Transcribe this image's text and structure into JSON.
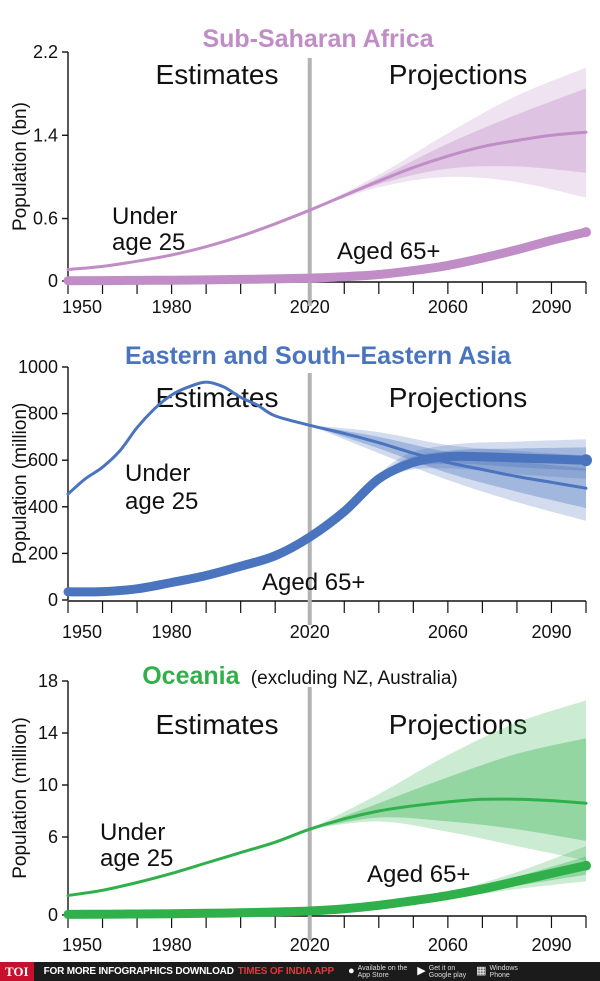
{
  "footer": {
    "logo": "TOI",
    "promo_text": "FOR MORE INFOGRAPHICS DOWNLOAD",
    "promo_brand": "TIMES OF INDIA APP",
    "stores": [
      {
        "icon": "apple-icon",
        "line1": "Available on the",
        "line2": "App Store"
      },
      {
        "icon": "google-play-icon",
        "line1": "Get it on",
        "line2": "Google play"
      },
      {
        "icon": "windows-icon",
        "line1": "Windows",
        "line2": "Phone"
      }
    ]
  },
  "colors": {
    "africa": "#c08dc6",
    "africa_band": "#c08dc6",
    "asia": "#4a74bd",
    "oceania": "#2fb04b",
    "divider": "#b3b3b3"
  },
  "chart_data": [
    {
      "type": "line",
      "title": "Sub-Saharan Africa",
      "subtitle": "",
      "ylabel": "Population (bn)",
      "xlabel": "",
      "xlim": [
        1950,
        2100
      ],
      "ylim": [
        0,
        2.2
      ],
      "xticks": [
        1950,
        1980,
        2020,
        2060,
        2090
      ],
      "yticks": [
        0,
        0.6,
        1.4,
        2.2
      ],
      "tick_labels_y": [
        "0",
        "0.6",
        "1.4",
        "2.2"
      ],
      "divider_year": 2020,
      "region_labels": {
        "left": "Estimates",
        "right": "Projections"
      },
      "series": [
        {
          "name": "Under age 25",
          "label_lines": [
            "Under",
            "age 25"
          ],
          "x": [
            1950,
            1960,
            1970,
            1980,
            1990,
            2000,
            2010,
            2020,
            2030,
            2040,
            2050,
            2060,
            2070,
            2080,
            2090,
            2100
          ],
          "y": [
            0.11,
            0.14,
            0.19,
            0.25,
            0.33,
            0.43,
            0.55,
            0.68,
            0.82,
            0.96,
            1.09,
            1.2,
            1.29,
            1.35,
            1.4,
            1.43
          ],
          "band_inner": [
            [
              2020,
              0.68,
              0.68
            ],
            [
              2040,
              0.93,
              0.99
            ],
            [
              2060,
              1.08,
              1.32
            ],
            [
              2080,
              1.1,
              1.6
            ],
            [
              2100,
              1.04,
              1.85
            ]
          ],
          "band_outer": [
            [
              2020,
              0.68,
              0.68
            ],
            [
              2040,
              0.9,
              1.02
            ],
            [
              2060,
              1.0,
              1.42
            ],
            [
              2080,
              0.95,
              1.78
            ],
            [
              2100,
              0.8,
              2.05
            ]
          ]
        },
        {
          "name": "Aged 65+",
          "label_lines": [
            "Aged 65+"
          ],
          "x": [
            1950,
            1960,
            1970,
            1980,
            1990,
            2000,
            2010,
            2020,
            2030,
            2040,
            2050,
            2060,
            2070,
            2080,
            2090,
            2100
          ],
          "y": [
            0.003,
            0.004,
            0.006,
            0.008,
            0.011,
            0.015,
            0.02,
            0.028,
            0.041,
            0.062,
            0.1,
            0.15,
            0.22,
            0.3,
            0.39,
            0.47
          ]
        }
      ]
    },
    {
      "type": "line",
      "title": "Eastern and South−Eastern Asia",
      "subtitle": "",
      "ylabel": "Population (million)",
      "xlabel": "",
      "xlim": [
        1950,
        2100
      ],
      "ylim": [
        0,
        1000
      ],
      "xticks": [
        1950,
        1980,
        2020,
        2060,
        2090
      ],
      "yticks": [
        0,
        200,
        400,
        600,
        800,
        1000
      ],
      "tick_labels_y": [
        "0",
        "200",
        "400",
        "600",
        "800",
        "1000"
      ],
      "divider_year": 2020,
      "region_labels": {
        "left": "Estimates",
        "right": "Projections"
      },
      "series": [
        {
          "name": "Under age 25",
          "label_lines": [
            "Under",
            "age 25"
          ],
          "x": [
            1950,
            1955,
            1960,
            1965,
            1970,
            1975,
            1980,
            1985,
            1990,
            1995,
            2000,
            2005,
            2010,
            2020,
            2030,
            2040,
            2050,
            2060,
            2070,
            2080,
            2090,
            2100
          ],
          "y": [
            455,
            520,
            570,
            640,
            740,
            820,
            880,
            915,
            935,
            915,
            870,
            835,
            790,
            750,
            715,
            675,
            630,
            590,
            560,
            530,
            505,
            480
          ],
          "band_inner": [
            [
              2020,
              750,
              750
            ],
            [
              2040,
              650,
              700
            ],
            [
              2060,
              545,
              635
            ],
            [
              2080,
              465,
              595
            ],
            [
              2100,
              395,
              565
            ]
          ],
          "band_outer": [
            [
              2020,
              750,
              750
            ],
            [
              2040,
              630,
              720
            ],
            [
              2060,
              515,
              665
            ],
            [
              2080,
              420,
              640
            ],
            [
              2100,
              340,
              620
            ]
          ]
        },
        {
          "name": "Aged 65+",
          "label_lines": [
            "Aged 65+"
          ],
          "x": [
            1950,
            1960,
            1970,
            1980,
            1990,
            2000,
            2010,
            2020,
            2030,
            2040,
            2050,
            2060,
            2070,
            2080,
            2090,
            2100
          ],
          "y": [
            35,
            36,
            48,
            75,
            105,
            145,
            190,
            270,
            380,
            520,
            590,
            615,
            615,
            610,
            605,
            600
          ],
          "band_inner": [
            [
              2030,
              380,
              380
            ],
            [
              2045,
              550,
              585
            ],
            [
              2060,
              585,
              640
            ],
            [
              2080,
              570,
              650
            ],
            [
              2100,
              555,
              655
            ]
          ],
          "band_outer": [
            [
              2030,
              380,
              380
            ],
            [
              2045,
              540,
              600
            ],
            [
              2060,
              565,
              665
            ],
            [
              2080,
              540,
              680
            ],
            [
              2100,
              520,
              690
            ]
          ]
        }
      ]
    },
    {
      "type": "line",
      "title": "Oceania",
      "subtitle": "(excluding NZ, Australia)",
      "ylabel": "Population (million)",
      "xlabel": "",
      "xlim": [
        1950,
        2100
      ],
      "ylim": [
        0,
        18
      ],
      "xticks": [
        1950,
        1980,
        2020,
        2060,
        2090
      ],
      "yticks": [
        0,
        6,
        10,
        14,
        18
      ],
      "tick_labels_y": [
        "0",
        "6",
        "10",
        "14",
        "18"
      ],
      "divider_year": 2020,
      "region_labels": {
        "left": "Estimates",
        "right": "Projections"
      },
      "series": [
        {
          "name": "Under age 25",
          "label_lines": [
            "Under",
            "age 25"
          ],
          "x": [
            1950,
            1960,
            1970,
            1980,
            1990,
            2000,
            2010,
            2020,
            2030,
            2040,
            2050,
            2060,
            2070,
            2080,
            2090,
            2100
          ],
          "y": [
            1.5,
            1.9,
            2.5,
            3.2,
            4.0,
            4.8,
            5.6,
            6.6,
            7.4,
            8.0,
            8.4,
            8.7,
            8.9,
            8.9,
            8.8,
            8.6
          ],
          "band_inner": [
            [
              2020,
              6.6,
              6.6
            ],
            [
              2040,
              7.5,
              8.6
            ],
            [
              2060,
              7.2,
              10.6
            ],
            [
              2080,
              6.6,
              12.4
            ],
            [
              2100,
              5.7,
              13.6
            ]
          ],
          "band_outer": [
            [
              2020,
              6.6,
              6.6
            ],
            [
              2040,
              7.2,
              9.3
            ],
            [
              2060,
              6.4,
              12.3
            ],
            [
              2080,
              5.3,
              14.8
            ],
            [
              2100,
              4.2,
              16.5
            ]
          ]
        },
        {
          "name": "Aged 65+",
          "label_lines": [
            "Aged 65+"
          ],
          "x": [
            1950,
            1960,
            1970,
            1980,
            1990,
            2000,
            2010,
            2020,
            2030,
            2040,
            2050,
            2060,
            2070,
            2080,
            2090,
            2100
          ],
          "y": [
            0.05,
            0.06,
            0.08,
            0.1,
            0.13,
            0.17,
            0.23,
            0.31,
            0.48,
            0.75,
            1.1,
            1.5,
            2.0,
            2.6,
            3.2,
            3.8
          ],
          "band_inner": [
            [
              2040,
              0.75,
              0.75
            ],
            [
              2060,
              1.35,
              1.65
            ],
            [
              2080,
              2.25,
              2.95
            ],
            [
              2100,
              3.1,
              4.5
            ]
          ],
          "band_outer": [
            [
              2040,
              0.75,
              0.75
            ],
            [
              2060,
              1.25,
              1.75
            ],
            [
              2080,
              2.0,
              3.3
            ],
            [
              2100,
              2.6,
              5.3
            ]
          ]
        }
      ]
    }
  ]
}
